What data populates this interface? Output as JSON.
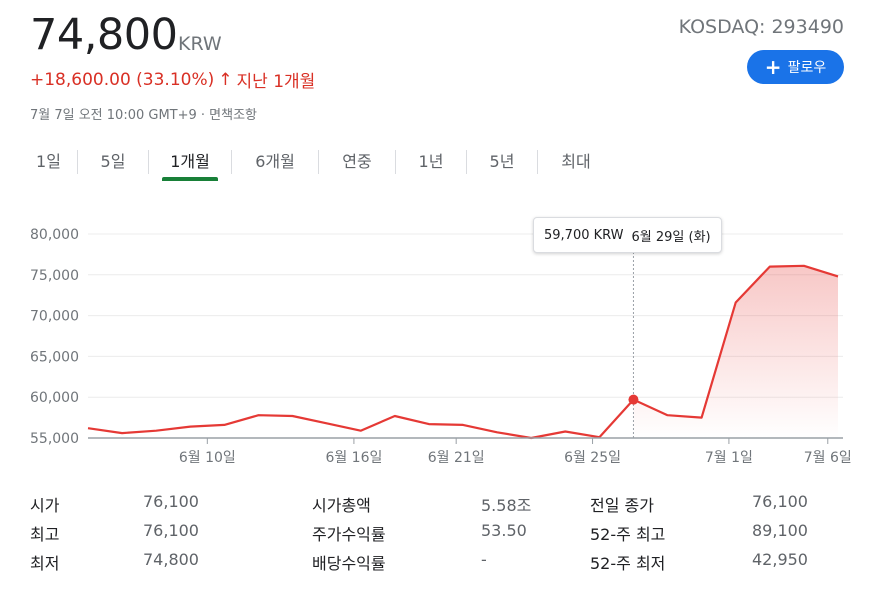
{
  "header": {
    "price": "74,800",
    "currency": "KRW",
    "ticker": "KOSDAQ: 293490",
    "change": "+18,600.00 (33.10%)",
    "change_arrow": "↑",
    "period": "지난 1개월",
    "timestamp": "7월 7일 오전 10:00 GMT+9 · 면책조항",
    "follow_icon": "plus-icon",
    "follow_plus": "+",
    "follow_label": "팔로우"
  },
  "tabs": [
    "1일",
    "5일",
    "1개월",
    "6개월",
    "연중",
    "1년",
    "5년",
    "최대"
  ],
  "active_tab": 2,
  "colors": {
    "line": "#e53935",
    "positive": "#d93025",
    "active_tab": "#188038",
    "button": "#1a73e8"
  },
  "tooltip": {
    "price": "59,700 KRW",
    "date": "6월 29일 (화)"
  },
  "chart_data": {
    "type": "area",
    "yticks": [
      "80,000",
      "75,000",
      "70,000",
      "65,000",
      "60,000",
      "55,000"
    ],
    "ytick_values": [
      80000,
      75000,
      70000,
      65000,
      60000,
      55000
    ],
    "ylim": [
      55000,
      80000
    ],
    "xtick_labels": [
      "6월 10일",
      "6월 16일",
      "6월 21일",
      "6월 25일",
      "7월 1일",
      "7월 6일"
    ],
    "xtick_index": [
      3.5,
      7.8,
      10.8,
      14.8,
      18.8,
      21.7
    ],
    "points": [
      56200,
      55600,
      55900,
      56400,
      56600,
      57800,
      57700,
      56800,
      55900,
      57700,
      56700,
      56600,
      55700,
      55000,
      55800,
      55100,
      59700,
      57800,
      57500,
      71600,
      76000,
      76100,
      74800
    ],
    "highlight_index": 16,
    "grid": true
  },
  "stats": {
    "col1": [
      {
        "label": "시가",
        "value": "76,100"
      },
      {
        "label": "최고",
        "value": "76,100"
      },
      {
        "label": "최저",
        "value": "74,800"
      }
    ],
    "col2": [
      {
        "label": "시가총액",
        "value": "5.58조"
      },
      {
        "label": "주가수익률",
        "value": "53.50"
      },
      {
        "label": "배당수익률",
        "value": "-"
      }
    ],
    "col3": [
      {
        "label": "전일 종가",
        "value": "76,100"
      },
      {
        "label": "52-주 최고",
        "value": "89,100"
      },
      {
        "label": "52-주 최저",
        "value": "42,950"
      }
    ]
  }
}
